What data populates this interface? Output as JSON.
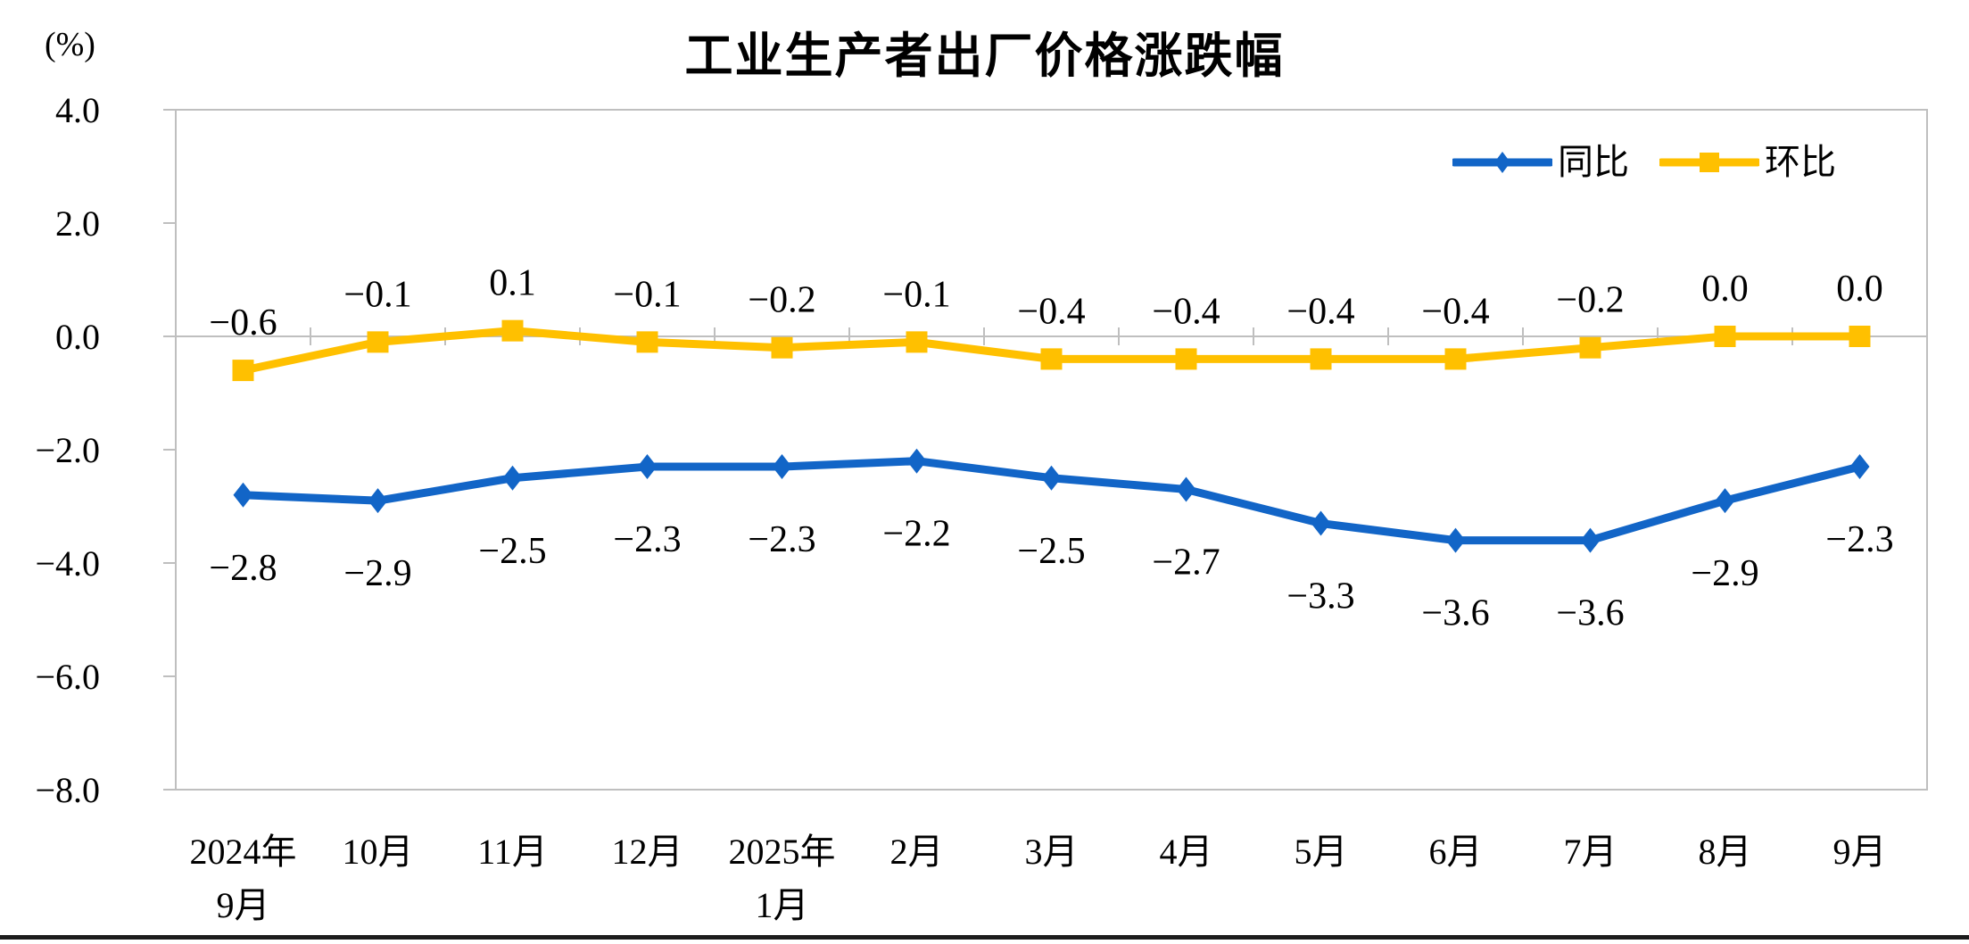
{
  "title": "工业生产者出厂价格涨跌幅",
  "unit_label": "(%)",
  "chart_data": {
    "type": "line",
    "title": "工业生产者出厂价格涨跌幅",
    "ylabel": "(%)",
    "ylim": [
      -8.0,
      4.0
    ],
    "yticks": [
      4.0,
      2.0,
      0.0,
      -2.0,
      -4.0,
      -6.0,
      -8.0
    ],
    "grid": false,
    "legend_position": "top-right",
    "axis_color": "#BFBFBF",
    "text_color": "#000000",
    "categories": [
      [
        "2024年",
        "9月"
      ],
      [
        "10月"
      ],
      [
        "11月"
      ],
      [
        "12月"
      ],
      [
        "2025年",
        "1月"
      ],
      [
        "2月"
      ],
      [
        "3月"
      ],
      [
        "4月"
      ],
      [
        "5月"
      ],
      [
        "6月"
      ],
      [
        "7月"
      ],
      [
        "8月"
      ],
      [
        "9月"
      ]
    ],
    "series": [
      {
        "name": "同比",
        "color": "#1265C7",
        "marker": "diamond",
        "label_position": "below",
        "values": [
          -2.8,
          -2.9,
          -2.5,
          -2.3,
          -2.3,
          -2.2,
          -2.5,
          -2.7,
          -3.3,
          -3.6,
          -3.6,
          -2.9,
          -2.3
        ]
      },
      {
        "name": "环比",
        "color": "#FFC000",
        "marker": "square",
        "label_position": "above",
        "values": [
          -0.6,
          -0.1,
          0.1,
          -0.1,
          -0.2,
          -0.1,
          -0.4,
          -0.4,
          -0.4,
          -0.4,
          -0.2,
          0.0,
          0.0
        ]
      }
    ]
  }
}
